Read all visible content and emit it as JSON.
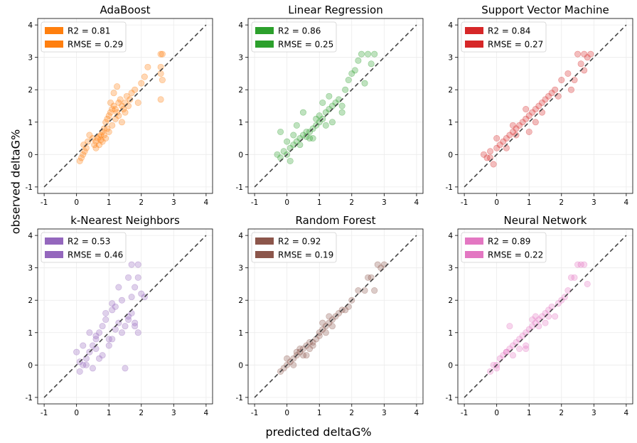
{
  "figure": {
    "xlabel": "predicted deltaG%",
    "ylabel": "observed deltaG%"
  },
  "chart_data": [
    {
      "type": "scatter",
      "title": "AdaBoost",
      "color": "#ff7f0e",
      "legend": [
        "R2 = 0.81",
        "RMSE = 0.29"
      ],
      "xlim": [
        -1.2,
        4.2
      ],
      "ylim": [
        -1.2,
        4.2
      ],
      "xticks": [
        "-1",
        "0",
        "1",
        "2",
        "3",
        "4"
      ],
      "yticks": [
        "-1",
        "0",
        "1",
        "2",
        "3",
        "4"
      ],
      "grid": true,
      "legend_position": "upper-left",
      "reference_line": [
        [
          -1,
          -1
        ],
        [
          4,
          4
        ]
      ],
      "x": [
        0.1,
        0.15,
        0.2,
        0.25,
        0.3,
        0.22,
        0.35,
        0.4,
        0.5,
        0.55,
        0.6,
        0.65,
        0.7,
        0.75,
        0.8,
        0.85,
        0.9,
        0.95,
        1.0,
        1.05,
        1.1,
        1.15,
        1.2,
        1.25,
        1.3,
        1.35,
        1.4,
        1.45,
        1.5,
        1.55,
        1.6,
        1.65,
        1.7,
        1.8,
        1.9,
        2.0,
        2.1,
        2.2,
        2.6,
        2.6,
        2.6,
        2.65,
        2.6,
        2.65,
        0.9,
        1.0,
        1.1,
        0.8,
        0.7,
        1.2,
        1.3,
        1.4,
        1.5,
        0.6,
        0.95,
        1.05,
        1.15,
        1.25,
        0.85,
        0.75
      ],
      "y": [
        -0.2,
        -0.1,
        0.0,
        0.1,
        0.2,
        0.3,
        0.4,
        0.6,
        0.5,
        0.3,
        0.4,
        0.5,
        0.55,
        0.6,
        0.7,
        0.8,
        1.0,
        1.1,
        1.2,
        1.3,
        1.4,
        1.5,
        1.4,
        1.3,
        1.6,
        1.7,
        1.5,
        1.4,
        1.6,
        1.8,
        1.5,
        1.7,
        1.9,
        2.0,
        1.6,
        2.2,
        2.4,
        2.7,
        3.1,
        2.7,
        2.5,
        2.3,
        1.7,
        3.1,
        0.5,
        0.7,
        0.9,
        0.4,
        0.3,
        1.1,
        1.2,
        1.0,
        1.3,
        0.2,
        0.8,
        1.6,
        1.9,
        2.1,
        0.6,
        0.45
      ]
    },
    {
      "type": "scatter",
      "title": "Linear Regression",
      "color": "#2ca02c",
      "legend": [
        "R2 = 0.86",
        "RMSE = 0.25"
      ],
      "xlim": [
        -1.2,
        4.2
      ],
      "ylim": [
        -1.2,
        4.2
      ],
      "xticks": [
        "-1",
        "0",
        "1",
        "2",
        "3",
        "4"
      ],
      "yticks": [
        "-1",
        "0",
        "1",
        "2",
        "3",
        "4"
      ],
      "grid": true,
      "legend_position": "upper-left",
      "reference_line": [
        [
          -1,
          -1
        ],
        [
          4,
          4
        ]
      ],
      "x": [
        -0.3,
        -0.2,
        -0.1,
        0.0,
        0.1,
        0.2,
        0.3,
        0.4,
        0.5,
        0.6,
        0.7,
        0.8,
        0.9,
        1.0,
        1.1,
        1.2,
        1.3,
        1.4,
        1.5,
        1.6,
        1.7,
        1.8,
        1.9,
        2.0,
        2.1,
        2.2,
        2.3,
        2.5,
        2.6,
        2.7,
        0.0,
        0.2,
        0.4,
        0.6,
        0.8,
        1.0,
        1.2,
        1.4,
        -0.2,
        0.3,
        0.5,
        0.9,
        1.1,
        1.3,
        1.7,
        2.4,
        0.7,
        0.1
      ],
      "y": [
        0.0,
        -0.1,
        0.1,
        0.0,
        0.2,
        0.3,
        0.4,
        0.5,
        0.6,
        0.55,
        0.7,
        0.8,
        0.9,
        1.0,
        1.1,
        1.3,
        1.4,
        1.5,
        1.6,
        1.7,
        1.5,
        2.0,
        2.3,
        2.5,
        2.6,
        2.9,
        3.1,
        3.1,
        2.8,
        3.1,
        0.4,
        0.6,
        0.3,
        0.7,
        0.5,
        1.2,
        0.9,
        1.0,
        0.7,
        0.9,
        1.3,
        1.1,
        1.6,
        1.8,
        1.3,
        2.2,
        0.5,
        -0.2
      ]
    },
    {
      "type": "scatter",
      "title": "Support Vector Machine",
      "color": "#d62728",
      "legend": [
        "R2 = 0.84",
        "RMSE = 0.27"
      ],
      "xlim": [
        -1.2,
        4.2
      ],
      "ylim": [
        -1.2,
        4.2
      ],
      "xticks": [
        "-1",
        "0",
        "1",
        "2",
        "3",
        "4"
      ],
      "yticks": [
        "-1",
        "0",
        "1",
        "2",
        "3",
        "4"
      ],
      "grid": true,
      "legend_position": "upper-left",
      "reference_line": [
        [
          -1,
          -1
        ],
        [
          4,
          4
        ]
      ],
      "x": [
        -0.4,
        -0.3,
        -0.2,
        -0.1,
        0.0,
        0.1,
        0.2,
        0.3,
        0.4,
        0.5,
        0.6,
        0.7,
        0.8,
        0.9,
        1.0,
        1.1,
        1.2,
        1.3,
        1.4,
        1.5,
        1.6,
        1.7,
        1.8,
        1.9,
        2.0,
        2.2,
        2.4,
        2.6,
        2.7,
        2.8,
        2.9,
        0.0,
        0.3,
        0.6,
        0.9,
        1.2,
        -0.2,
        0.5,
        1.0,
        1.4,
        2.3,
        2.5,
        2.7
      ],
      "y": [
        0.0,
        -0.1,
        0.1,
        -0.3,
        0.2,
        0.3,
        0.4,
        0.5,
        0.6,
        0.7,
        0.8,
        0.9,
        1.0,
        1.1,
        1.2,
        1.3,
        1.4,
        1.5,
        1.6,
        1.7,
        1.8,
        1.9,
        2.0,
        1.8,
        2.3,
        2.5,
        2.3,
        2.8,
        3.1,
        3.0,
        3.1,
        0.5,
        0.2,
        0.6,
        1.4,
        1.0,
        -0.1,
        0.9,
        0.7,
        1.3,
        2.0,
        3.1,
        2.6
      ]
    },
    {
      "type": "scatter",
      "title": "k-Nearest Neighbors",
      "color": "#9467bd",
      "legend": [
        "R2 = 0.53",
        "RMSE = 0.46"
      ],
      "xlim": [
        -1.2,
        4.2
      ],
      "ylim": [
        -1.2,
        4.2
      ],
      "xticks": [
        "-1",
        "0",
        "1",
        "2",
        "3",
        "4"
      ],
      "yticks": [
        "-1",
        "0",
        "1",
        "2",
        "3",
        "4"
      ],
      "grid": true,
      "legend_position": "upper-left",
      "reference_line": [
        [
          -1,
          -1
        ],
        [
          4,
          4
        ]
      ],
      "x": [
        0.0,
        0.1,
        0.2,
        0.3,
        0.4,
        0.5,
        0.6,
        0.7,
        0.8,
        0.9,
        1.0,
        1.1,
        1.2,
        1.3,
        1.4,
        1.5,
        1.6,
        1.7,
        1.8,
        1.9,
        2.0,
        2.1,
        0.2,
        0.4,
        0.6,
        0.8,
        1.0,
        1.2,
        1.4,
        1.6,
        1.8,
        0.5,
        0.7,
        0.9,
        1.1,
        1.3,
        1.5,
        1.7,
        0.3,
        0.1,
        1.9,
        1.6,
        1.7,
        1.8,
        1.9,
        1.1,
        0.6
      ],
      "y": [
        0.4,
        -0.2,
        0.0,
        0.2,
        0.4,
        0.6,
        0.8,
        1.0,
        1.2,
        1.4,
        0.6,
        0.8,
        1.1,
        1.3,
        1.0,
        1.2,
        1.4,
        1.6,
        1.3,
        1.0,
        2.2,
        2.1,
        0.6,
        1.0,
        0.5,
        0.3,
        0.8,
        1.8,
        2.0,
        1.5,
        1.2,
        -0.1,
        0.2,
        1.6,
        1.9,
        2.4,
        -0.1,
        3.1,
        0.0,
        0.1,
        3.1,
        2.7,
        2.1,
        2.4,
        2.7,
        1.7,
        0.9
      ]
    },
    {
      "type": "scatter",
      "title": "Random Forest",
      "color": "#8c564b",
      "legend": [
        "R2 = 0.92",
        "RMSE = 0.19"
      ],
      "xlim": [
        -1.2,
        4.2
      ],
      "ylim": [
        -1.2,
        4.2
      ],
      "xticks": [
        "-1",
        "0",
        "1",
        "2",
        "3",
        "4"
      ],
      "yticks": [
        "-1",
        "0",
        "1",
        "2",
        "3",
        "4"
      ],
      "grid": true,
      "legend_position": "upper-left",
      "reference_line": [
        [
          -1,
          -1
        ],
        [
          4,
          4
        ]
      ],
      "x": [
        -0.2,
        -0.1,
        0.0,
        0.1,
        0.2,
        0.3,
        0.4,
        0.5,
        0.6,
        0.7,
        0.8,
        0.9,
        1.0,
        1.1,
        1.2,
        1.3,
        1.4,
        1.5,
        1.6,
        1.7,
        1.8,
        1.9,
        2.0,
        2.2,
        2.4,
        2.6,
        2.8,
        3.0,
        0.0,
        0.2,
        0.4,
        0.6,
        0.8,
        1.0,
        1.2,
        1.4,
        2.5,
        2.7,
        2.9,
        0.3,
        0.5,
        0.7,
        1.1,
        1.3
      ],
      "y": [
        -0.2,
        -0.1,
        0.0,
        0.1,
        0.2,
        0.3,
        0.4,
        0.5,
        0.6,
        0.7,
        0.7,
        0.8,
        1.0,
        1.1,
        1.2,
        1.3,
        1.4,
        1.5,
        1.6,
        1.7,
        1.7,
        1.8,
        2.0,
        2.3,
        2.3,
        2.7,
        3.1,
        3.1,
        0.2,
        0.0,
        0.5,
        0.3,
        0.6,
        0.9,
        1.0,
        1.2,
        2.7,
        2.3,
        3.0,
        0.4,
        0.3,
        0.5,
        1.3,
        1.5
      ]
    },
    {
      "type": "scatter",
      "title": "Neural Network",
      "color": "#e377c2",
      "legend": [
        "R2 = 0.89",
        "RMSE = 0.22"
      ],
      "xlim": [
        -1.2,
        4.2
      ],
      "ylim": [
        -1.2,
        4.2
      ],
      "xticks": [
        "-1",
        "0",
        "1",
        "2",
        "3",
        "4"
      ],
      "yticks": [
        "-1",
        "0",
        "1",
        "2",
        "3",
        "4"
      ],
      "grid": true,
      "legend_position": "upper-left",
      "reference_line": [
        [
          -1,
          -1
        ],
        [
          4,
          4
        ]
      ],
      "x": [
        -0.2,
        -0.1,
        0.0,
        0.1,
        0.2,
        0.3,
        0.4,
        0.5,
        0.6,
        0.7,
        0.8,
        0.9,
        1.0,
        1.1,
        1.2,
        1.3,
        1.4,
        1.5,
        1.6,
        1.7,
        1.8,
        1.9,
        2.0,
        2.1,
        2.2,
        2.4,
        2.6,
        2.7,
        2.8,
        0.0,
        0.3,
        0.5,
        0.7,
        0.9,
        1.1,
        1.3,
        1.5,
        2.3,
        2.5,
        0.4,
        1.2,
        0.9,
        1.6
      ],
      "y": [
        -0.2,
        0.0,
        -0.1,
        0.2,
        0.3,
        0.4,
        0.5,
        0.6,
        0.7,
        0.8,
        0.9,
        1.0,
        1.1,
        1.2,
        1.3,
        1.4,
        1.5,
        1.6,
        1.7,
        1.8,
        1.5,
        1.9,
        2.0,
        2.1,
        2.3,
        2.7,
        3.1,
        3.1,
        2.5,
        0.0,
        0.4,
        0.3,
        0.5,
        0.6,
        1.4,
        1.2,
        1.3,
        2.7,
        3.1,
        1.2,
        1.5,
        0.5,
        1.5
      ]
    }
  ]
}
